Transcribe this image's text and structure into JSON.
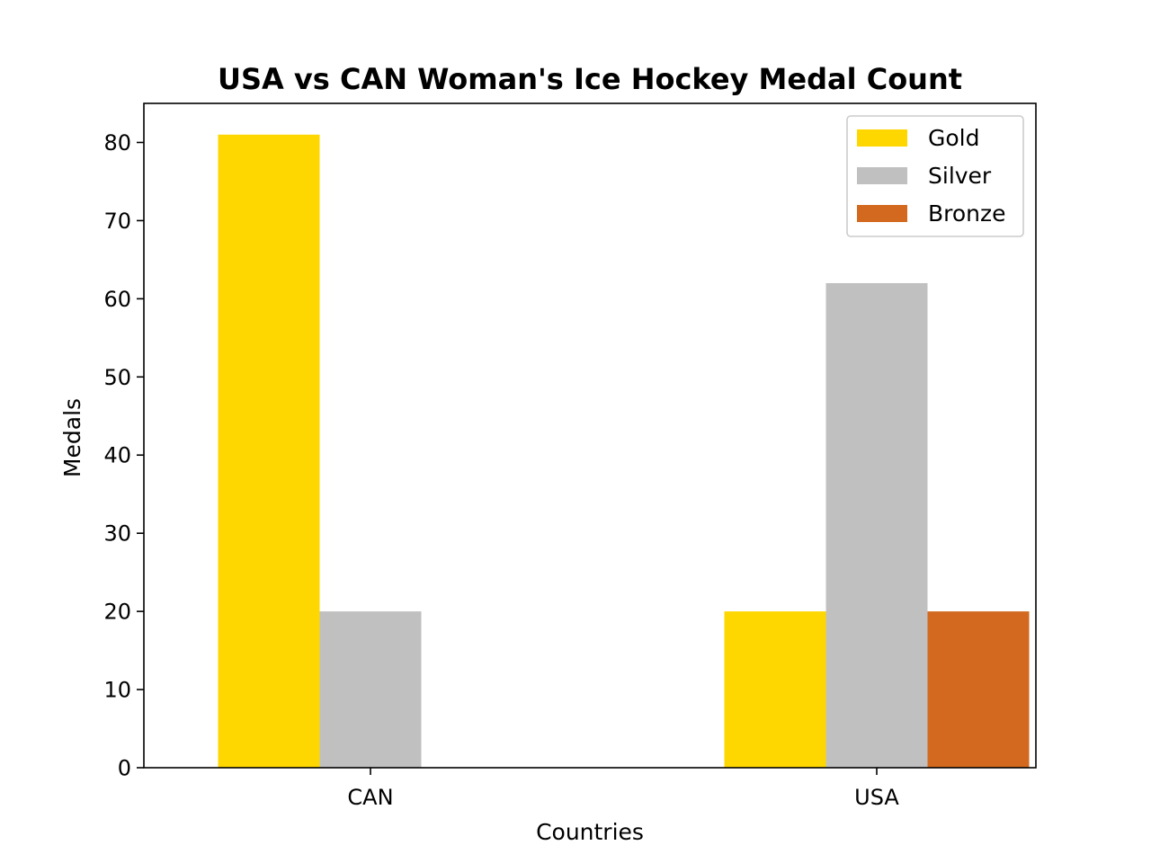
{
  "chart_data": {
    "type": "bar",
    "title": "USA vs CAN Woman's Ice Hockey Medal Count",
    "xlabel": "Countries",
    "ylabel": "Medals",
    "categories": [
      "CAN",
      "USA"
    ],
    "series": [
      {
        "name": "Gold",
        "values": [
          81,
          20
        ],
        "color": "#FFD700"
      },
      {
        "name": "Silver",
        "values": [
          20,
          62
        ],
        "color": "#C0C0C0"
      },
      {
        "name": "Bronze",
        "values": [
          0,
          20
        ],
        "color": "#D2691E"
      }
    ],
    "ylim": [
      0,
      85
    ],
    "yticks": [
      0,
      10,
      20,
      30,
      40,
      50,
      60,
      70,
      80
    ],
    "grid": false,
    "legend_position": "top-right"
  }
}
